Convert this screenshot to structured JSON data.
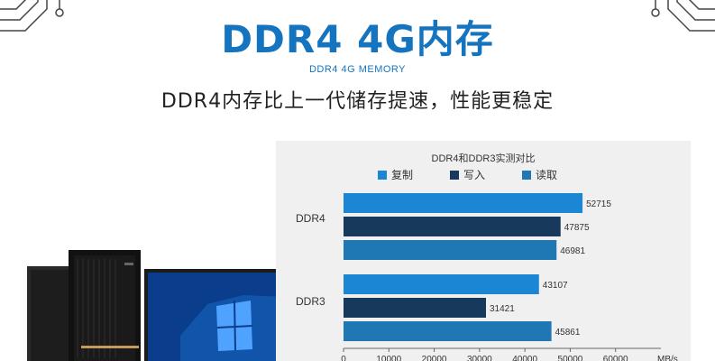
{
  "banner": {
    "title": "DDR4 4G内存",
    "subtitle": "DDR4 4G MEMORY",
    "tagline": "DDR4内存比上一代储存提速，性能更稳定"
  },
  "colors": {
    "accent": "#1574bf",
    "series_copy": "#1a86d4",
    "series_write": "#173a5c",
    "series_read": "#1f77b4",
    "panel_bg": "#f0f0f0"
  },
  "chart_data": {
    "type": "bar",
    "orientation": "horizontal",
    "title": "DDR4和DDR3实测对比",
    "categories": [
      "DDR4",
      "DDR3"
    ],
    "series": [
      {
        "name": "复制",
        "values": [
          52715,
          43107
        ]
      },
      {
        "name": "写入",
        "values": [
          47875,
          31421
        ]
      },
      {
        "name": "读取",
        "values": [
          46981,
          45861
        ]
      }
    ],
    "xlim": [
      0,
      70000
    ],
    "x_ticks": [
      0,
      10000,
      20000,
      30000,
      40000,
      50000,
      60000
    ],
    "xlabel_unit": "MB/s",
    "legend_position": "top",
    "grid": false
  },
  "icons": [
    "circuit-left-icon",
    "circuit-right-icon",
    "pc-tower-icon",
    "monitor-icon"
  ]
}
